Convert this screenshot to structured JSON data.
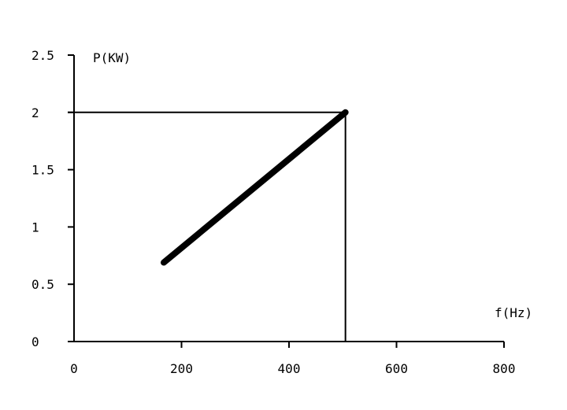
{
  "chart_data": {
    "type": "line",
    "xlabel": "f(Hz)",
    "ylabel": "P(KW)",
    "xlim": [
      0,
      800
    ],
    "ylim": [
      0,
      2.5
    ],
    "x_ticks": [
      0,
      200,
      400,
      600,
      800
    ],
    "x_tick_labels": [
      "0",
      "200",
      "400",
      "600",
      "800"
    ],
    "y_ticks": [
      0,
      0.5,
      1,
      1.5,
      2,
      2.5
    ],
    "y_tick_labels": [
      "0",
      "0.5",
      "1",
      "1.5",
      "2",
      "2.5"
    ],
    "grid": false,
    "series": [
      {
        "x": [
          167,
          505
        ],
        "y": [
          0.69,
          2.0
        ]
      }
    ],
    "reference_lines": {
      "horizontal_y": 2,
      "vertical_x": 505
    },
    "colors": {
      "line": "#000000",
      "axes": "#000000"
    }
  }
}
